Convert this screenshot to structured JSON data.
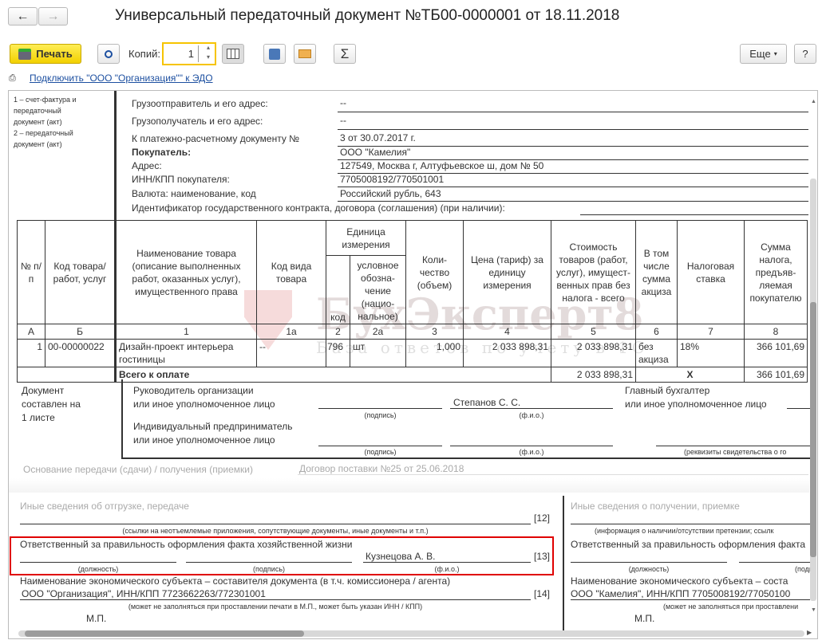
{
  "window": {
    "title": "Универсальный передаточный документ №ТБ00-0000001 от 18.11.2018",
    "back_icon": "←",
    "forward_icon": "→"
  },
  "toolbar": {
    "print_label": "Печать",
    "copies_label": "Копий:",
    "copies_value": "1",
    "more_label": "Еще",
    "help_label": "?",
    "sum_icon": "Σ"
  },
  "edo_link": "Подключить \"ООО \"Организация\"\" к ЭДО",
  "doc": {
    "status_note": [
      "1 – счет-фактура и",
      "передаточный",
      "документ (акт)",
      "2 – передаточный",
      "документ (акт)"
    ],
    "header_fields": [
      {
        "label": "Грузоотправитель и его адрес:",
        "value": "--"
      },
      {
        "label": "Грузополучатель и его адрес:",
        "value": "--"
      },
      {
        "label": "К платежно-расчетному документу №",
        "value": "3 от 30.07.2017 г."
      },
      {
        "label": "Покупатель:",
        "value": "ООО \"Камелия\""
      },
      {
        "label": "Адрес:",
        "value": "127549, Москва г, Алтуфьевское ш, дом № 50"
      },
      {
        "label": "ИНН/КПП покупателя:",
        "value": "7705008192/770501001"
      },
      {
        "label": "Валюта: наименование, код",
        "value": "Российский рубль, 643"
      },
      {
        "label": "Идентификатор государственного контракта, договора (соглашения) (при наличии):",
        "value": ""
      }
    ],
    "table": {
      "headers": [
        "№ п/п",
        "Код товара/ работ, услуг",
        "Наименование товара (описание выполненных работ, оказанных услуг), имущественного права",
        "Код вида товара",
        "Единица измерения",
        "код",
        "условное обозна-чение (нацио-нальное)",
        "Коли-чество (объем)",
        "Цена (тариф) за единицу измерения",
        "Стоимость товаров (работ, услуг), имущест-венных прав без налога - всего",
        "В том числе сумма акциза",
        "Налоговая ставка",
        "Сумма налога, предъяв-ляемая покупателю"
      ],
      "col_numbers": [
        "А",
        "Б",
        "1",
        "1а",
        "2",
        "2а",
        "3",
        "4",
        "5",
        "6",
        "7",
        "8"
      ],
      "rows": [
        {
          "n": "1",
          "code": "00-00000022",
          "name": "Дизайн-проект интерьера гостиницы",
          "kind": "--",
          "unit_code": "796",
          "unit": "шт",
          "qty": "1,000",
          "price": "2 033 898,31",
          "cost": "2 033 898,31",
          "excise": "без акциза",
          "rate": "18%",
          "tax": "366 101,69"
        }
      ],
      "total_label": "Всего к оплате",
      "total_cost": "2 033 898,31",
      "total_mark": "X",
      "total_tax": "366 101,69"
    },
    "sheets_note": [
      "Документ",
      "составлен на",
      "1 листе"
    ],
    "signatures": {
      "head_label": [
        "Руководитель организации",
        "или иное уполномоченное лицо"
      ],
      "head_name": "Степанов С. С.",
      "accountant_label": [
        "Главный бухгалтер",
        "или иное уполномоченное лицо"
      ],
      "ip_label": [
        "Индивидуальный предприниматель",
        "или иное уполномоченное лицо"
      ],
      "sign_caption": "(подпись)",
      "fio_caption": "(ф.и.о.)",
      "cert_caption": "(реквизиты свидетельства о го"
    },
    "basis_label": "Основание передачи (сдачи) / получения (приемки)",
    "basis_value": "Договор поставки №25 от 25.06.2018",
    "left": {
      "other_label": "Иные сведения об отгрузке, передаче",
      "other_caption": "(ссылки на неотъемлемые приложения, сопутствующие документы, иные документы и т.п.)",
      "n12": "[12]",
      "resp_label": "Ответственный за правильность оформления факта хозяйственной жизни",
      "resp_name": "Кузнецова А. В.",
      "n13": "[13]",
      "pos_caption": "(должность)",
      "sign_caption": "(подпись)",
      "fio_caption": "(ф.и.о.)",
      "entity_label": "Наименование экономического субъекта – составителя документа (в т.ч. комиссионера / агента)",
      "entity_value": "ООО \"Организация\", ИНН/КПП 7723662263/772301001",
      "n14": "[14]",
      "entity_caption": "(может не заполняться при проставлении печати в М.П., может быть указан ИНН / КПП)",
      "mp": "М.П."
    },
    "right": {
      "other_label": "Иные сведения о получении, приемке",
      "other_caption": "(информация о наличии/отсутствии претензии; ссылк",
      "resp_label": "Ответственный за правильность оформления факта",
      "pos_caption": "(должность)",
      "sign_caption": "(подп",
      "entity_label": "Наименование экономического субъекта – соста",
      "entity_value": "ООО \"Камелия\", ИНН/КПП 7705008192/77050100",
      "entity_caption": "(может не заполняться при проставлени",
      "mp": "М.П."
    }
  },
  "watermark": {
    "text": "БухЭксперт8",
    "subtext": "База ответов по учету в 1С"
  },
  "colors": {
    "print_button": "#f2d000",
    "highlight_border": "#e00000",
    "link": "#1c4fa0"
  }
}
